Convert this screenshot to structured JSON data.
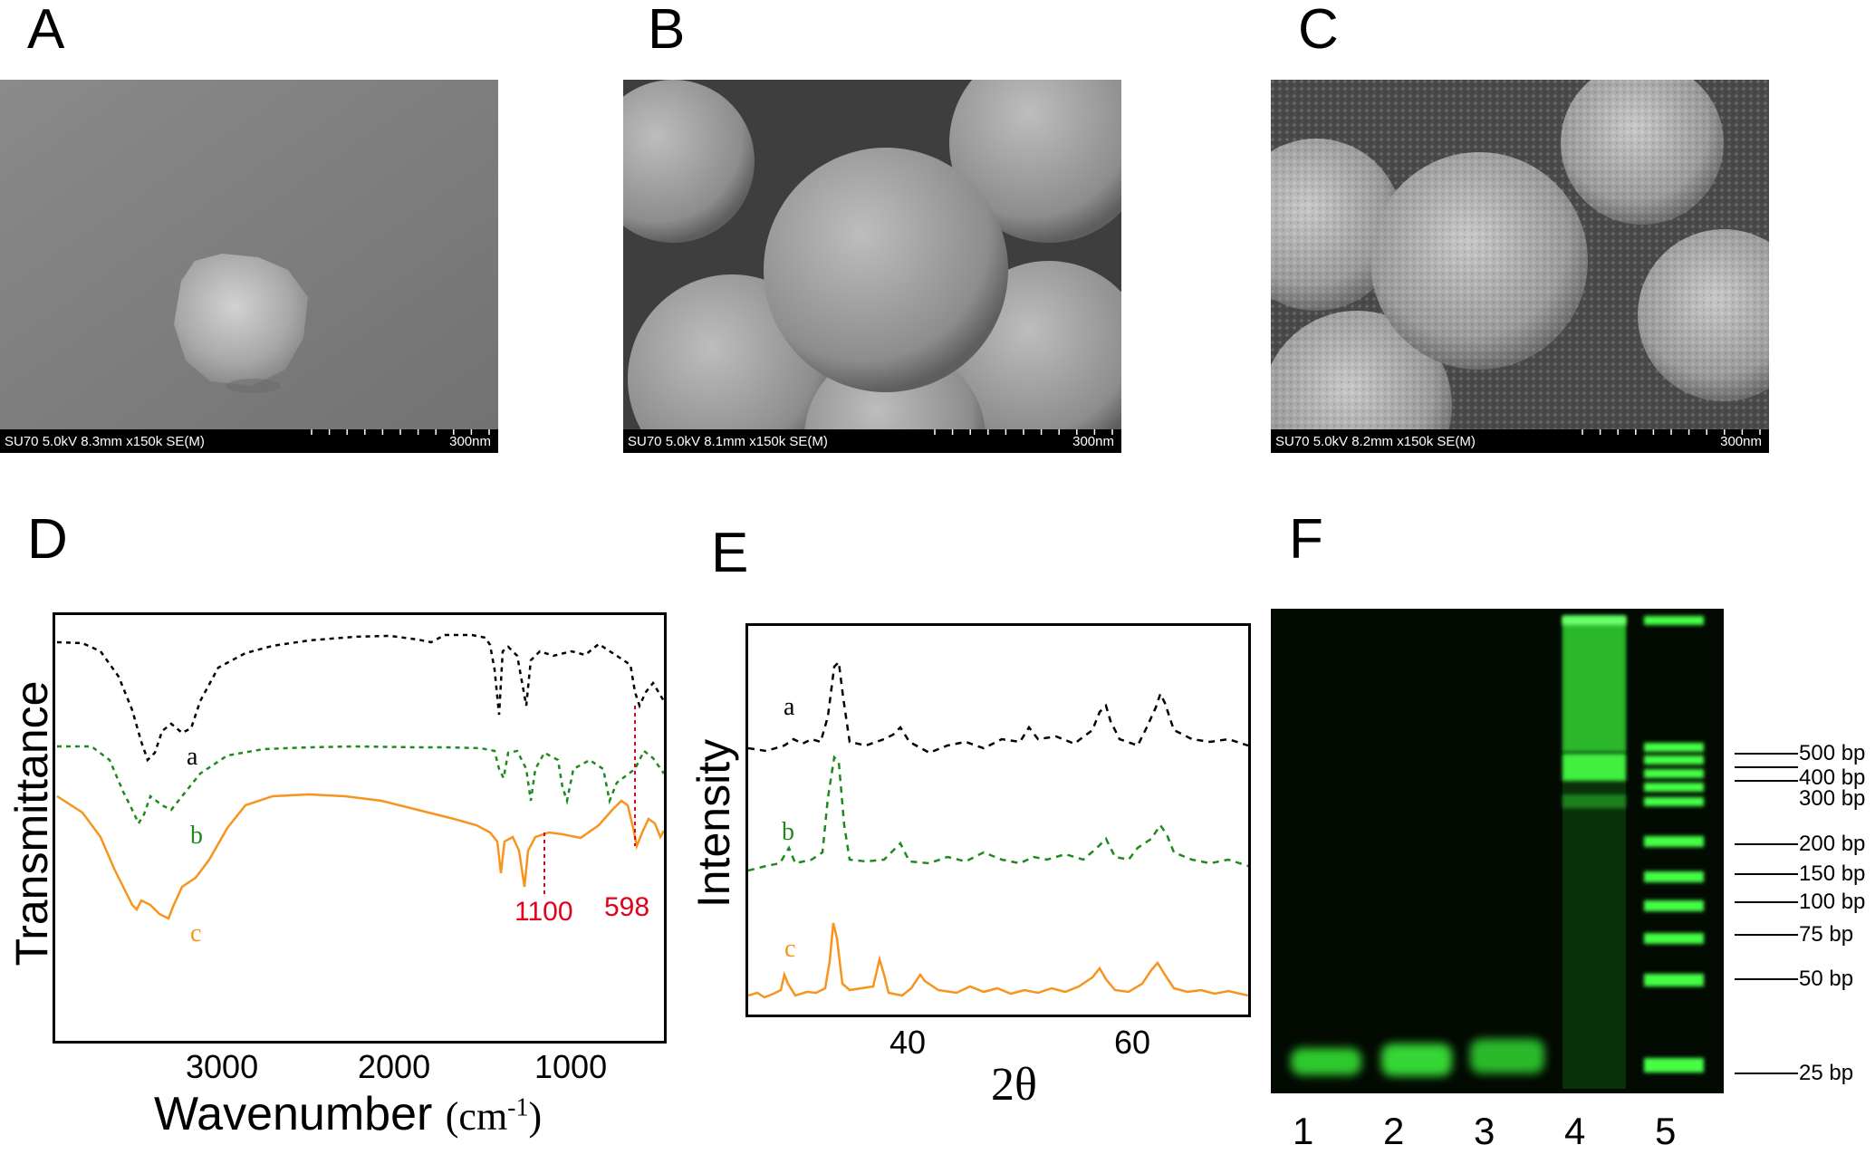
{
  "panels": {
    "A": "A",
    "B": "B",
    "C": "C",
    "D": "D",
    "E": "E",
    "F": "F"
  },
  "sem_images": [
    {
      "info": "SU70 5.0kV 8.3mm x150k SE(M)",
      "scale": "300nm"
    },
    {
      "info": "SU70 5.0kV 8.1mm x150k SE(M)",
      "scale": "300nm"
    },
    {
      "info": "SU70 5.0kV 8.2mm x150k SE(M)",
      "scale": "300nm"
    }
  ],
  "chart_data": [
    {
      "panel": "D",
      "type": "line",
      "xlabel": "Wavenumber",
      "xlabel_unit": "(cm",
      "xlabel_exp": "-1",
      "xlabel_close": ")",
      "ylabel": "Transmittance",
      "x_reversed": true,
      "xlim": [
        4000,
        400
      ],
      "xticks": [
        "3000",
        "2000",
        "1000"
      ],
      "series_labels": [
        "a",
        "b",
        "c"
      ],
      "series_colors": [
        "#000000",
        "#1e8a1e",
        "#f7941d"
      ],
      "peak_annotations": [
        "1100",
        "598"
      ],
      "peak_positions": [
        1100,
        598
      ]
    },
    {
      "panel": "E",
      "type": "line",
      "xlabel": "2θ",
      "ylabel": "Intensity",
      "xlim": [
        25,
        70
      ],
      "xticks": [
        "40",
        "60"
      ],
      "series_labels": [
        "a",
        "b",
        "c"
      ],
      "series_colors": [
        "#000000",
        "#1e8a1e",
        "#f7941d"
      ]
    }
  ],
  "gel": {
    "lane_labels": [
      "1",
      "2",
      "3",
      "4",
      "5"
    ],
    "marker_labels": [
      "500 bp",
      "400 bp",
      "300 bp",
      "200 bp",
      "150 bp",
      "100 bp",
      "75 bp",
      "50 bp",
      "25 bp"
    ],
    "marker_values": [
      500,
      400,
      300,
      200,
      150,
      100,
      75,
      50,
      25
    ],
    "band_color": "#39ff39"
  }
}
